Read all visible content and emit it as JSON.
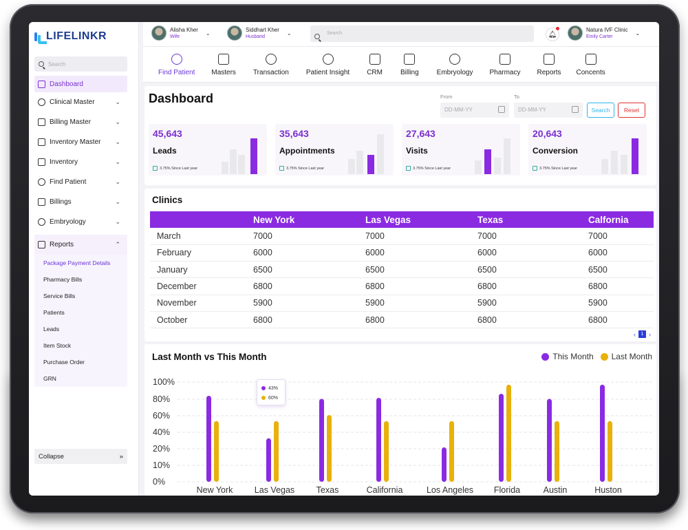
{
  "app": {
    "logo": "LIFELINKR"
  },
  "sidebar": {
    "search_placeholder": "Search",
    "items": [
      {
        "label": "Dashboard",
        "icon": "dashboard-icon"
      },
      {
        "label": "Clinical Master",
        "icon": "plus-circle-icon"
      },
      {
        "label": "Billing Master",
        "icon": "billing-icon"
      },
      {
        "label": "Inventory Master",
        "icon": "inventory-master-icon"
      },
      {
        "label": "Inventory",
        "icon": "inventory-icon"
      },
      {
        "label": "Find Patient",
        "icon": "find-patient-icon"
      },
      {
        "label": "Billings",
        "icon": "billings-icon"
      },
      {
        "label": "Embryology",
        "icon": "embryology-icon"
      },
      {
        "label": "Reports",
        "icon": "reports-icon"
      }
    ],
    "report_subitems": [
      "Package Payment Details",
      "Pharmacy Bills",
      "Service Bills",
      "Patients",
      "Leads",
      "Item Stock",
      "Purchase Order",
      "GRN"
    ],
    "collapse_label": "Collapse",
    "collapse_icon": "»"
  },
  "topbar": {
    "user1": {
      "name": "Alisha Kher",
      "role": "Wife"
    },
    "user2": {
      "name": "Siddhart Kher",
      "role": "Husband"
    },
    "search_placeholder": "Search",
    "clinic": {
      "name": "Natura IVF Clinic",
      "user": "Emily Carter"
    }
  },
  "nav": [
    {
      "label": "Find Patient",
      "icon": "find-patient-icon"
    },
    {
      "label": "Masters",
      "icon": "masters-icon"
    },
    {
      "label": "Transaction",
      "icon": "rupee-icon"
    },
    {
      "label": "Patient Insight",
      "icon": "patient-icon"
    },
    {
      "label": "CRM",
      "icon": "crm-icon"
    },
    {
      "label": "Billing",
      "icon": "billing-icon"
    },
    {
      "label": "Embryology",
      "icon": "embryology-icon"
    },
    {
      "label": "Pharmacy",
      "icon": "pharmacy-icon"
    },
    {
      "label": "Reports",
      "icon": "reports-icon"
    },
    {
      "label": "Concents",
      "icon": "consent-icon"
    }
  ],
  "dashboard": {
    "title": "Dashboard",
    "from_label": "From",
    "to_label": "To",
    "date_placeholder": "DD-MM-YY",
    "search_button": "Search",
    "reset_button": "Reset",
    "cards": [
      {
        "value": "45,643",
        "label": "Leads",
        "since": "3.75% Since Last year"
      },
      {
        "value": "35,643",
        "label": "Appointments",
        "since": "3.75% Since Last year"
      },
      {
        "value": "27,643",
        "label": "Visits",
        "since": "3.75% Since Last year"
      },
      {
        "value": "20,643",
        "label": "Conversion",
        "since": "3.75% Since Last year"
      }
    ]
  },
  "clinics": {
    "title": "Clinics",
    "columns": [
      "",
      "New York",
      "Las Vegas",
      "Texas",
      "Calfornia"
    ],
    "rows": [
      [
        "March",
        "7000",
        "7000",
        "7000",
        "7000"
      ],
      [
        "February",
        "6000",
        "6000",
        "6000",
        "6000"
      ],
      [
        "January",
        "6500",
        "6500",
        "6500",
        "6500"
      ],
      [
        "December",
        "6800",
        "6800",
        "6800",
        "6800"
      ],
      [
        "November",
        "5900",
        "5900",
        "5900",
        "5900"
      ],
      [
        "October",
        "6800",
        "6800",
        "6800",
        "6800"
      ]
    ],
    "page": "1",
    "prev": "‹",
    "next": "›"
  },
  "colors": {
    "accent": "#8a2be2",
    "secondary": "#e8b10b",
    "search": "#2cb5e8",
    "reset": "#e03030"
  },
  "chart_data": {
    "type": "bar",
    "title": "Last Month vs This Month",
    "categories": [
      "New York",
      "Las Vegas",
      "Texas",
      "California",
      "Los Angeles",
      "Florida",
      "Austin",
      "Huston"
    ],
    "series": [
      {
        "name": "This Month",
        "color": "#8a2be2",
        "values": [
          85,
          43,
          82,
          83,
          34,
          87,
          82,
          96
        ]
      },
      {
        "name": "Last Month",
        "color": "#e8b10b",
        "values": [
          60,
          60,
          66,
          60,
          60,
          96,
          60,
          60
        ]
      }
    ],
    "ylim": [
      0,
      100
    ],
    "yticks": [
      "0%",
      "10%",
      "20%",
      "40%",
      "60%",
      "80%",
      "100%"
    ],
    "tooltip": {
      "this": "43%",
      "last": "60%"
    },
    "grid": true,
    "legend": "top-right"
  }
}
